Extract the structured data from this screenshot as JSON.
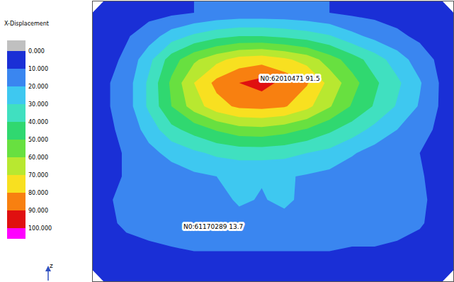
{
  "chart_data": {
    "type": "contour",
    "title": "X-Displacement",
    "tick_labels": false,
    "xlim": [
      0,
      16
    ],
    "ylim": [
      0,
      12
    ],
    "cells": [
      [
        5,
        6,
        7,
        8,
        10,
        12,
        13,
        13,
        13,
        12,
        10,
        8,
        7,
        6,
        5,
        5
      ],
      [
        5,
        9,
        15,
        25,
        32,
        37,
        40,
        40,
        38,
        35,
        31,
        23,
        17,
        12,
        8,
        5
      ],
      [
        6,
        12,
        27,
        45,
        58,
        67,
        74,
        76,
        72,
        66,
        55,
        45,
        35,
        25,
        15,
        7
      ],
      [
        8,
        15,
        32,
        52,
        70,
        83,
        90,
        94,
        87,
        81,
        67,
        54,
        42,
        32,
        21,
        8
      ],
      [
        8,
        15,
        32,
        50,
        65,
        76,
        82,
        83,
        81,
        73,
        61,
        49,
        39,
        29,
        19,
        8
      ],
      [
        7,
        13,
        24,
        37,
        44,
        51,
        56,
        57,
        54,
        49,
        42,
        35,
        27,
        20,
        14,
        7
      ],
      [
        6,
        11,
        17,
        23,
        28,
        32,
        34,
        34,
        33,
        30,
        27,
        21,
        16,
        13,
        10,
        6
      ],
      [
        6,
        11,
        13,
        15,
        18,
        20,
        21,
        21,
        21,
        19,
        17,
        14,
        12,
        12,
        11,
        6
      ],
      [
        8,
        13,
        13,
        14,
        14,
        15,
        22,
        19,
        23,
        16,
        15,
        14,
        14,
        13,
        12,
        6
      ],
      [
        7,
        12,
        13,
        14,
        14,
        14,
        15,
        15,
        15,
        14,
        14,
        14,
        13,
        13,
        11,
        6
      ],
      [
        5,
        7,
        9,
        10,
        11,
        11,
        11,
        11,
        11,
        11,
        11,
        10,
        10,
        9,
        7,
        5
      ],
      [
        4,
        5,
        5,
        6,
        6,
        6,
        6,
        6,
        6,
        6,
        6,
        6,
        6,
        5,
        5,
        4
      ]
    ],
    "colorbar": {
      "range": [
        0,
        100
      ],
      "ticks": [
        {
          "value": 0,
          "label": "0.000"
        },
        {
          "value": 10,
          "label": "10.000"
        },
        {
          "value": 20,
          "label": "20.000"
        },
        {
          "value": 30,
          "label": "30.000"
        },
        {
          "value": 40,
          "label": "40.000"
        },
        {
          "value": 50,
          "label": "50.000"
        },
        {
          "value": 60,
          "label": "60.000"
        },
        {
          "value": 70,
          "label": "70.000"
        },
        {
          "value": 80,
          "label": "80.000"
        },
        {
          "value": 90,
          "label": "90.000"
        },
        {
          "value": 100,
          "label": "100.000"
        }
      ],
      "colors": [
        "#c0c0c0",
        "#1a2fd6",
        "#3a86f0",
        "#3ec8f0",
        "#40e0c0",
        "#30d870",
        "#68e040",
        "#b8e830",
        "#f8e020",
        "#f88010",
        "#e01010",
        "#ff00ff"
      ]
    },
    "annotations": [
      {
        "text": "N0:62010471 91.5",
        "x": 7.34,
        "y": 3.33
      },
      {
        "text": "N0:61170289 13.7",
        "x": 3.94,
        "y": 9.64
      }
    ],
    "triad_label": "z"
  }
}
